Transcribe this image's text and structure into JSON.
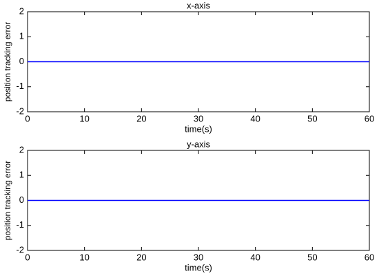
{
  "chart_data": [
    {
      "type": "line",
      "title": "x-axis",
      "xlabel": "time(s)",
      "ylabel": "position tracking error",
      "x": [
        0,
        60
      ],
      "values": [
        0,
        0
      ],
      "color": "#0000ff",
      "xlim": [
        0,
        60
      ],
      "ylim": [
        -2,
        2
      ],
      "xticks": [
        0,
        10,
        20,
        30,
        40,
        50,
        60
      ],
      "yticks": [
        -2,
        -1,
        0,
        1,
        2
      ]
    },
    {
      "type": "line",
      "title": "y-axis",
      "xlabel": "time(s)",
      "ylabel": "position tracking error",
      "x": [
        0,
        60
      ],
      "values": [
        0,
        0
      ],
      "color": "#0000ff",
      "xlim": [
        0,
        60
      ],
      "ylim": [
        -2,
        2
      ],
      "xticks": [
        0,
        10,
        20,
        30,
        40,
        50,
        60
      ],
      "yticks": [
        -2,
        -1,
        0,
        1,
        2
      ]
    }
  ]
}
